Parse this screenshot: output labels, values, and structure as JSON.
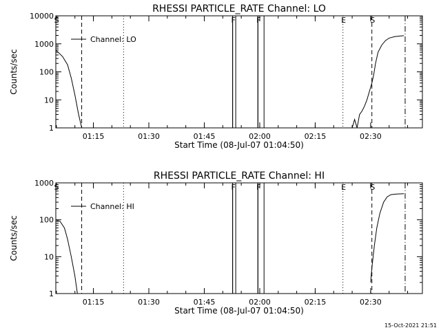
{
  "timestamp": "15-Oct-2021 21:51",
  "chart_data": [
    {
      "type": "line",
      "title": "RHESSI PARTICLE_RATE Channel: LO",
      "xlabel": "Start Time (08-Jul-07 01:04:50)",
      "ylabel": "Counts/sec",
      "yscale": "log",
      "ylim": [
        1,
        10000
      ],
      "xlim": [
        "01:04:50",
        "02:44:00"
      ],
      "ytick_labels": [
        "1",
        "10",
        "100",
        "1000",
        "10000"
      ],
      "xtick_labels": [
        "01:15",
        "01:30",
        "01:45",
        "02:00",
        "02:15",
        "02:30"
      ],
      "legend": "Channel: LO",
      "legend_position": "top-left",
      "series": [
        {
          "name": "Channel: LO",
          "segments": [
            [
              [
                "01:04:50",
                600
              ],
              [
                "01:06:40",
                350
              ],
              [
                "01:08:00",
                180
              ],
              [
                "01:09:00",
                60
              ],
              [
                "01:10:00",
                15
              ],
              [
                "01:11:00",
                3
              ],
              [
                "01:11:50",
                1
              ]
            ],
            [
              [
                "01:52:40",
                1
              ],
              [
                "01:52:40",
                10000
              ]
            ],
            [
              [
                "01:53:30",
                1
              ],
              [
                "01:53:30",
                10000
              ]
            ],
            [
              [
                "01:59:30",
                1
              ],
              [
                "01:59:30",
                10000
              ]
            ],
            [
              [
                "02:01:10",
                1
              ],
              [
                "02:01:10",
                10000
              ]
            ],
            [
              [
                "02:25:00",
                1
              ],
              [
                "02:25:40",
                2
              ],
              [
                "02:26:20",
                1
              ],
              [
                "02:27:00",
                3
              ],
              [
                "02:27:40",
                4
              ],
              [
                "02:28:20",
                6
              ],
              [
                "02:29:00",
                10
              ],
              [
                "02:29:40",
                20
              ],
              [
                "02:30:20",
                40
              ],
              [
                "02:30:50",
                80
              ],
              [
                "02:31:20",
                200
              ],
              [
                "02:32:00",
                500
              ],
              [
                "02:33:00",
                900
              ],
              [
                "02:34:00",
                1300
              ],
              [
                "02:35:00",
                1600
              ],
              [
                "02:36:30",
                1800
              ],
              [
                "02:38:00",
                1900
              ],
              [
                "02:39:00",
                1950
              ]
            ]
          ]
        }
      ],
      "markers": [
        {
          "label": "S",
          "time": "01:04:50",
          "style": "dashed"
        },
        {
          "label": "",
          "time": "01:11:50",
          "style": "dashed"
        },
        {
          "label": "",
          "time": "01:23:10",
          "style": "dotted"
        },
        {
          "label": "F",
          "time": "01:52:40",
          "style": "solid"
        },
        {
          "label": "F",
          "time": "01:59:30",
          "style": "solid"
        },
        {
          "label": "E",
          "time": "02:22:30",
          "style": "dotted"
        },
        {
          "label": "S",
          "time": "02:30:20",
          "style": "dashed"
        },
        {
          "label": "",
          "time": "02:39:20",
          "style": "dashdot"
        }
      ],
      "grid": false
    },
    {
      "type": "line",
      "title": "RHESSI PARTICLE_RATE Channel: HI",
      "xlabel": "Start Time (08-Jul-07 01:04:50)",
      "ylabel": "Counts/sec",
      "yscale": "log",
      "ylim": [
        1,
        1000
      ],
      "xlim": [
        "01:04:50",
        "02:44:00"
      ],
      "ytick_labels": [
        "1",
        "10",
        "100",
        "1000"
      ],
      "xtick_labels": [
        "01:15",
        "01:30",
        "01:45",
        "02:00",
        "02:15",
        "02:30"
      ],
      "legend": "Channel: HI",
      "legend_position": "top-left",
      "series": [
        {
          "name": "Channel: HI",
          "segments": [
            [
              [
                "01:04:50",
                100
              ],
              [
                "01:06:00",
                90
              ],
              [
                "01:07:10",
                60
              ],
              [
                "01:08:00",
                30
              ],
              [
                "01:09:00",
                10
              ],
              [
                "01:10:00",
                3
              ],
              [
                "01:10:40",
                1
              ]
            ],
            [
              [
                "01:52:40",
                1
              ],
              [
                "01:52:40",
                1000
              ]
            ],
            [
              [
                "01:53:30",
                1
              ],
              [
                "01:53:30",
                1000
              ]
            ],
            [
              [
                "01:59:30",
                1
              ],
              [
                "01:59:30",
                1000
              ]
            ],
            [
              [
                "02:01:10",
                1
              ],
              [
                "02:01:10",
                1000
              ]
            ],
            [
              [
                "02:30:00",
                2
              ],
              [
                "02:30:20",
                5
              ],
              [
                "02:31:00",
                20
              ],
              [
                "02:31:40",
                60
              ],
              [
                "02:32:30",
                150
              ],
              [
                "02:33:30",
                300
              ],
              [
                "02:34:30",
                420
              ],
              [
                "02:35:30",
                480
              ],
              [
                "02:37:00",
                500
              ],
              [
                "02:39:00",
                510
              ]
            ]
          ]
        }
      ],
      "markers": [
        {
          "label": "S",
          "time": "01:04:50",
          "style": "dashed"
        },
        {
          "label": "",
          "time": "01:11:50",
          "style": "dashed"
        },
        {
          "label": "",
          "time": "01:23:10",
          "style": "dotted"
        },
        {
          "label": "F",
          "time": "01:52:40",
          "style": "solid"
        },
        {
          "label": "F",
          "time": "01:59:30",
          "style": "solid"
        },
        {
          "label": "E",
          "time": "02:22:30",
          "style": "dotted"
        },
        {
          "label": "S",
          "time": "02:30:20",
          "style": "dashed"
        },
        {
          "label": "",
          "time": "02:39:20",
          "style": "dashdot"
        }
      ],
      "grid": false
    }
  ]
}
